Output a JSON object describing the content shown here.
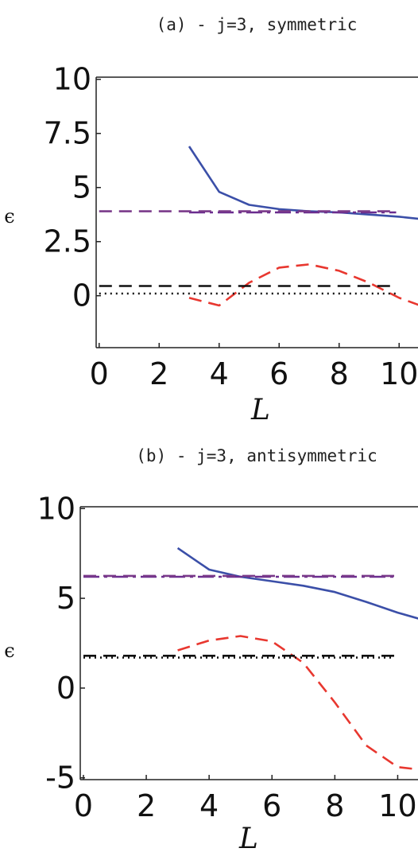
{
  "chart_data": [
    {
      "type": "line",
      "title": "(a) - j=3, symmetric",
      "xlabel": "L",
      "ylabel": "ϵ",
      "xlim": [
        -0.1,
        11.0
      ],
      "ylim": [
        -2.4,
        10.1
      ],
      "xticks": [
        0,
        2,
        4,
        6,
        8,
        10
      ],
      "yticks": [
        10,
        7.5,
        5,
        2.5,
        0
      ],
      "ytick_labels": [
        "10",
        "7.5",
        "5",
        "2.5",
        "0"
      ],
      "grid": false,
      "series": [
        {
          "style": "solid",
          "color": "#3B4FA8",
          "x": [
            3,
            4,
            5,
            6,
            7,
            8,
            9,
            10,
            11
          ],
          "y": [
            6.9,
            4.8,
            4.2,
            4.0,
            3.9,
            3.85,
            3.75,
            3.65,
            3.5
          ]
        },
        {
          "style": "dashed",
          "color": "#E8372F",
          "x": [
            3,
            4,
            5,
            6,
            7,
            8,
            9,
            10,
            11
          ],
          "y": [
            -0.1,
            -0.45,
            0.6,
            1.3,
            1.45,
            1.15,
            0.6,
            -0.1,
            -0.6
          ]
        },
        {
          "style": "dashdot",
          "color": "#6A2C8F",
          "x": [
            3,
            9.9
          ],
          "y": [
            3.85,
            3.85
          ]
        },
        {
          "style": "dashed",
          "color": "#7A3A8A",
          "x": [
            0,
            9.9
          ],
          "y": [
            3.9,
            3.9
          ]
        },
        {
          "style": "dashed",
          "color": "#111111",
          "x": [
            0,
            9.9
          ],
          "y": [
            0.45,
            0.45
          ]
        },
        {
          "style": "dotted",
          "color": "#111111",
          "x": [
            0,
            9.9
          ],
          "y": [
            0.1,
            0.1
          ]
        }
      ]
    },
    {
      "type": "line",
      "title": "(b) - j=3, antisymmetric",
      "xlabel": "L",
      "ylabel": "ϵ",
      "xlim": [
        -0.1,
        11.0
      ],
      "ylim": [
        -5.1,
        10.1
      ],
      "xticks": [
        0,
        2,
        4,
        6,
        8,
        10
      ],
      "yticks": [
        10,
        5,
        0,
        -5
      ],
      "ytick_labels": [
        "10",
        "5",
        "0",
        "-5"
      ],
      "grid": false,
      "series": [
        {
          "style": "solid",
          "color": "#3B4FA8",
          "x": [
            3,
            4,
            5,
            6,
            7,
            8,
            9,
            10,
            11
          ],
          "y": [
            7.8,
            6.6,
            6.2,
            5.95,
            5.7,
            5.35,
            4.8,
            4.2,
            3.7
          ]
        },
        {
          "style": "dashed",
          "color": "#E8372F",
          "x": [
            3,
            4,
            5,
            6,
            7,
            8,
            9,
            10,
            11
          ],
          "y": [
            2.1,
            2.65,
            2.9,
            2.6,
            1.4,
            -0.8,
            -3.2,
            -4.4,
            -4.6
          ]
        },
        {
          "style": "dashdot",
          "color": "#6A2C8F",
          "x": [
            0,
            9.9
          ],
          "y": [
            6.2,
            6.2
          ]
        },
        {
          "style": "dashed",
          "color": "#7A3A8A",
          "x": [
            0,
            9.9
          ],
          "y": [
            6.25,
            6.25
          ]
        },
        {
          "style": "dashed",
          "color": "#111111",
          "x": [
            0,
            9.9
          ],
          "y": [
            1.8,
            1.8
          ]
        },
        {
          "style": "dotted",
          "color": "#111111",
          "x": [
            0,
            9.9
          ],
          "y": [
            1.7,
            1.7
          ]
        }
      ]
    }
  ]
}
